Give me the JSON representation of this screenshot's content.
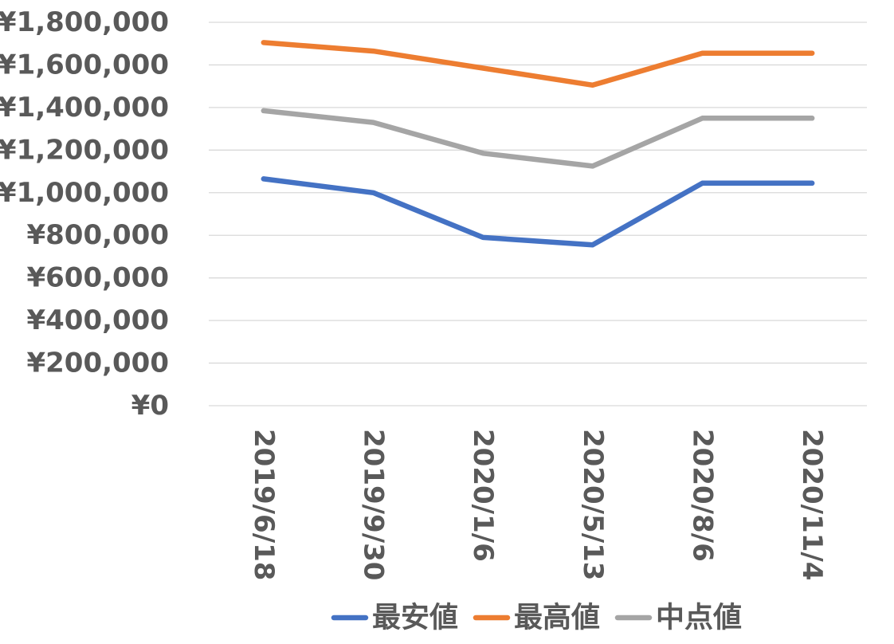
{
  "chart_data": {
    "type": "line",
    "title": "",
    "xlabel": "",
    "ylabel": "",
    "categories": [
      "2019/6/18",
      "2019/9/30",
      "2020/1/6",
      "2020/5/13",
      "2020/8/6",
      "2020/11/4"
    ],
    "y_ticks": [
      "¥0",
      "¥200,000",
      "¥400,000",
      "¥600,000",
      "¥800,000",
      "¥1,000,000",
      "¥1,200,000",
      "¥1,400,000",
      "¥1,600,000",
      "¥1,800,000"
    ],
    "ylim": [
      0,
      1800000
    ],
    "grid": true,
    "legend_position": "bottom",
    "series": [
      {
        "name": "最安値",
        "color": "#4472C4",
        "values": [
          1065000,
          1000000,
          790000,
          755000,
          1045000,
          1045000
        ]
      },
      {
        "name": "最高値",
        "color": "#ED7D31",
        "values": [
          1705000,
          1665000,
          1585000,
          1505000,
          1655000,
          1655000
        ]
      },
      {
        "name": "中点値",
        "color": "#A5A5A5",
        "values": [
          1385000,
          1330000,
          1185000,
          1125000,
          1350000,
          1350000
        ]
      }
    ]
  }
}
